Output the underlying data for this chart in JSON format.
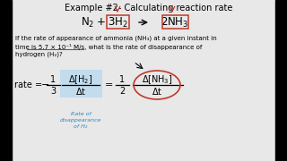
{
  "title": "Example #2- Calculating reaction rate",
  "bg_color": "#e8e8e8",
  "body_line1": "If the rate of appearance of ammonia (NH₃) at a given instant in",
  "body_line2": "time is 5.7 × 10⁻¹ M/s, what is the rate of disappearance of",
  "body_line3": "hydrogen (H₂)?",
  "rate_blue_label": "Rate of\ndisappearance\nof H₂",
  "red_color": "#c0392b",
  "blue_color": "#2e86c1",
  "highlight_blue": "#aed6f1",
  "black": "#000000",
  "dark_gray": "#1a1a1a",
  "border_width": 13
}
